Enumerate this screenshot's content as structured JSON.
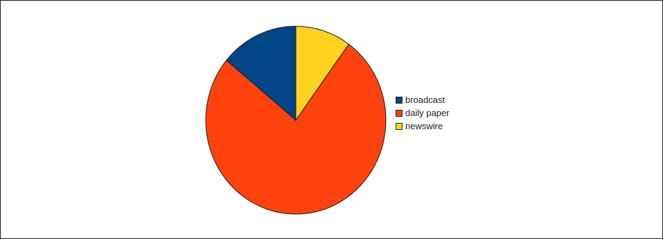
{
  "chart_data": {
    "type": "pie",
    "title": "",
    "legend_position": "right",
    "series": [
      {
        "name": "broadcast",
        "value": 14,
        "color": "#004586"
      },
      {
        "name": "daily paper",
        "value": 76,
        "color": "#ff420e"
      },
      {
        "name": "newswire",
        "value": 10,
        "color": "#ffd320"
      }
    ]
  }
}
